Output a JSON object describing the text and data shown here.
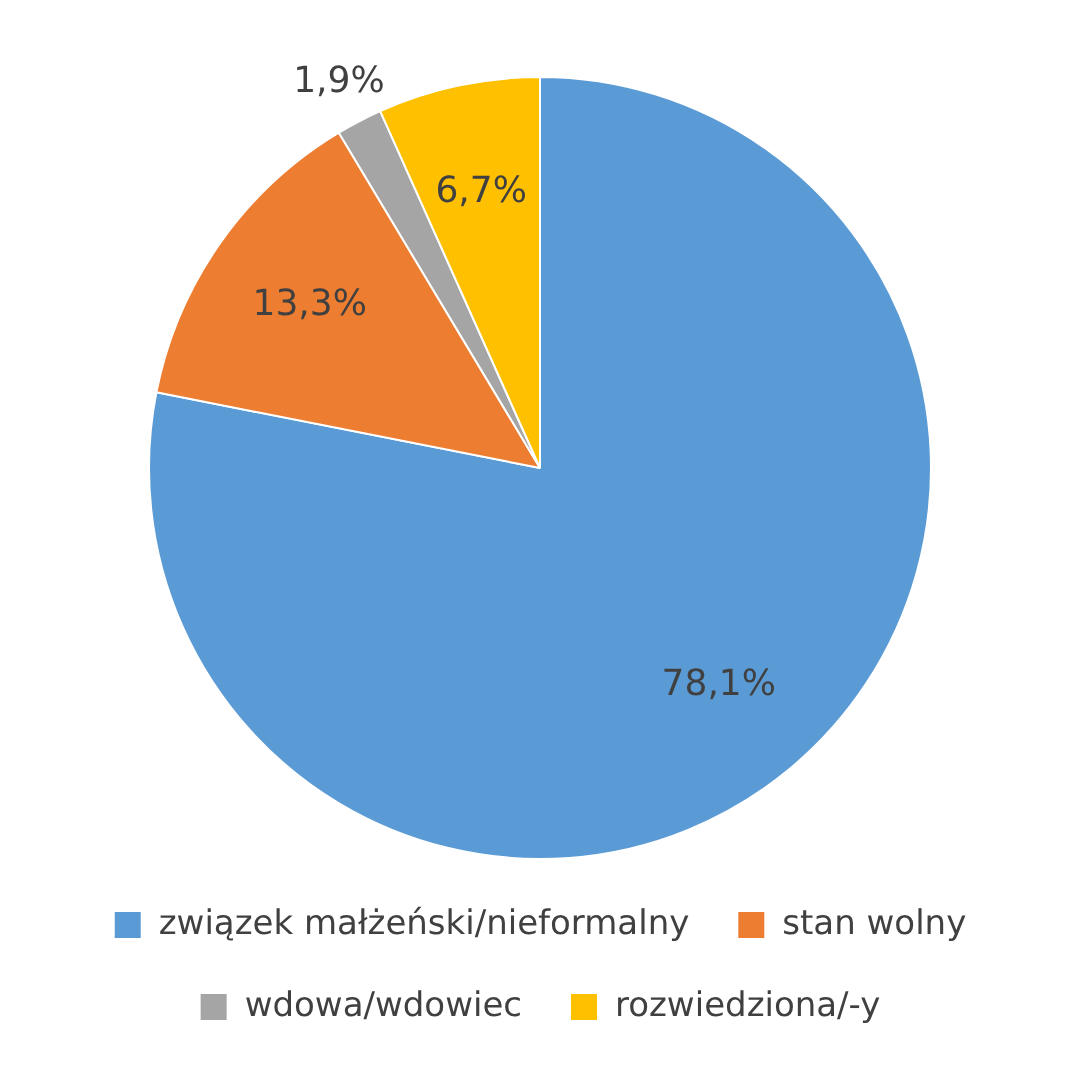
{
  "chart_data": {
    "type": "pie",
    "categories": [
      "związek małżeński/nieformalny",
      "stan wolny",
      "wdowa/wdowiec",
      "rozwiedziona/-y"
    ],
    "values": [
      78.1,
      13.3,
      1.9,
      6.7
    ],
    "colors": [
      "#5b9bd5",
      "#ed7d31",
      "#a5a5a5",
      "#ffc000"
    ],
    "value_labels": [
      "78,1%",
      "13,3%",
      "1,9%",
      "6,7%"
    ],
    "legend": "bottom"
  }
}
